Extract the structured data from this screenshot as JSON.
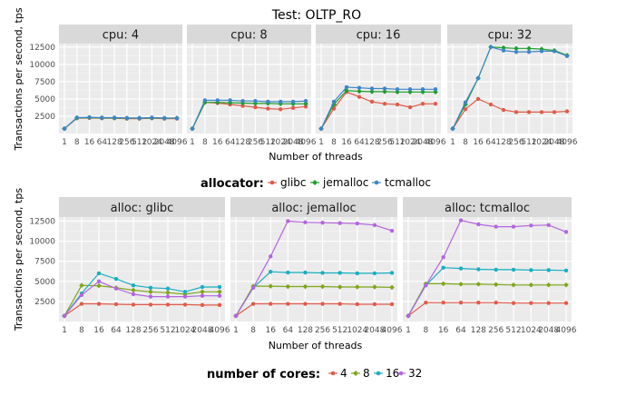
{
  "page": {
    "title": "Test:  OLTP_RO"
  },
  "colors": {
    "glibc": "#e05b4b",
    "jemalloc": "#1f9e2e",
    "tcmalloc": "#3f86c6",
    "c4": "#e05b4b",
    "c8": "#7ea61b",
    "c16": "#1aaec0",
    "c32": "#b466dd"
  },
  "chart_data": [
    {
      "type": "line",
      "title": "Test:  OLTP_RO",
      "xlabel": "Number of threads",
      "ylabel": "Transactions per second, tps",
      "x": [
        "1",
        "8",
        "16",
        "64",
        "128",
        "256",
        "512",
        "1024",
        "2048",
        "4096"
      ],
      "ylim": [
        0,
        13000
      ],
      "yticks": [
        "2500",
        "5000",
        "7500",
        "10000",
        "12500"
      ],
      "legend": {
        "title": "allocator:",
        "labels": [
          "glibc",
          "jemalloc",
          "tcmalloc"
        ]
      },
      "facets": [
        {
          "label": "cpu: 4",
          "series": [
            {
              "name": "glibc",
              "values": [
                700,
                2200,
                2250,
                2200,
                2200,
                2150,
                2150,
                2200,
                2150,
                2150
              ]
            },
            {
              "name": "jemalloc",
              "values": [
                700,
                2250,
                2300,
                2250,
                2250,
                2200,
                2200,
                2250,
                2200,
                2250
              ]
            },
            {
              "name": "tcmalloc",
              "values": [
                700,
                2300,
                2350,
                2300,
                2300,
                2250,
                2250,
                2300,
                2250,
                2200
              ]
            }
          ]
        },
        {
          "label": "cpu: 8",
          "series": [
            {
              "name": "glibc",
              "values": [
                700,
                4500,
                4400,
                4200,
                4000,
                3800,
                3600,
                3500,
                3700,
                3900
              ]
            },
            {
              "name": "jemalloc",
              "values": [
                700,
                4500,
                4500,
                4450,
                4400,
                4350,
                4350,
                4300,
                4300,
                4300
              ]
            },
            {
              "name": "tcmalloc",
              "values": [
                700,
                4800,
                4800,
                4800,
                4700,
                4700,
                4600,
                4600,
                4600,
                4700
              ]
            }
          ]
        },
        {
          "label": "cpu: 16",
          "series": [
            {
              "name": "glibc",
              "values": [
                700,
                3600,
                6000,
                5300,
                4600,
                4300,
                4200,
                3800,
                4300,
                4300
              ]
            },
            {
              "name": "jemalloc",
              "values": [
                700,
                4200,
                6200,
                6100,
                6050,
                6050,
                6000,
                6000,
                6000,
                6000
              ]
            },
            {
              "name": "tcmalloc",
              "values": [
                700,
                4600,
                6700,
                6600,
                6500,
                6500,
                6400,
                6400,
                6400,
                6400
              ]
            }
          ]
        },
        {
          "label": "cpu: 32",
          "series": [
            {
              "name": "glibc",
              "values": [
                700,
                3500,
                5000,
                4200,
                3400,
                3100,
                3100,
                3100,
                3100,
                3200
              ]
            },
            {
              "name": "jemalloc",
              "values": [
                700,
                4200,
                8000,
                12500,
                12400,
                12300,
                12300,
                12200,
                12000,
                11300
              ]
            },
            {
              "name": "tcmalloc",
              "values": [
                700,
                4500,
                8000,
                12500,
                12000,
                11800,
                11800,
                11900,
                11900,
                11200
              ]
            }
          ]
        }
      ]
    },
    {
      "type": "line",
      "xlabel": "Number of threads",
      "ylabel": "Transactions per second, tps",
      "x": [
        "1",
        "8",
        "16",
        "64",
        "128",
        "256",
        "512",
        "1024",
        "2048",
        "4096"
      ],
      "ylim": [
        0,
        13000
      ],
      "yticks": [
        "2500",
        "5000",
        "7500",
        "10000",
        "12500"
      ],
      "legend": {
        "title": "number of cores:",
        "labels": [
          "4",
          "8",
          "16",
          "32"
        ]
      },
      "facets": [
        {
          "label": "alloc: glibc",
          "series": [
            {
              "name": "4",
              "values": [
                700,
                2200,
                2200,
                2150,
                2100,
                2100,
                2100,
                2100,
                2050,
                2050
              ]
            },
            {
              "name": "8",
              "values": [
                700,
                4500,
                4450,
                4200,
                3900,
                3700,
                3600,
                3400,
                3700,
                3700
              ]
            },
            {
              "name": "16",
              "values": [
                700,
                3500,
                6000,
                5300,
                4500,
                4200,
                4100,
                3700,
                4300,
                4300
              ]
            },
            {
              "name": "32",
              "values": [
                700,
                3300,
                5000,
                4100,
                3400,
                3100,
                3100,
                3100,
                3200,
                3200
              ]
            }
          ]
        },
        {
          "label": "alloc: jemalloc",
          "series": [
            {
              "name": "4",
              "values": [
                700,
                2200,
                2200,
                2200,
                2200,
                2200,
                2200,
                2150,
                2150,
                2150
              ]
            },
            {
              "name": "8",
              "values": [
                700,
                4400,
                4400,
                4350,
                4350,
                4350,
                4300,
                4300,
                4300,
                4250
              ]
            },
            {
              "name": "16",
              "values": [
                700,
                4200,
                6200,
                6100,
                6100,
                6050,
                6050,
                6000,
                6000,
                6050
              ]
            },
            {
              "name": "32",
              "values": [
                700,
                4200,
                8100,
                12500,
                12350,
                12300,
                12250,
                12200,
                12000,
                11300
              ]
            }
          ]
        },
        {
          "label": "alloc: tcmalloc",
          "series": [
            {
              "name": "4",
              "values": [
                700,
                2350,
                2350,
                2350,
                2350,
                2350,
                2300,
                2300,
                2300,
                2300
              ]
            },
            {
              "name": "8",
              "values": [
                700,
                4700,
                4700,
                4650,
                4650,
                4600,
                4550,
                4550,
                4550,
                4550
              ]
            },
            {
              "name": "16",
              "values": [
                700,
                4500,
                6700,
                6600,
                6500,
                6450,
                6450,
                6400,
                6400,
                6350
              ]
            },
            {
              "name": "32",
              "values": [
                700,
                4500,
                8000,
                12600,
                12100,
                11800,
                11800,
                11950,
                12000,
                11150
              ]
            }
          ]
        }
      ]
    }
  ]
}
